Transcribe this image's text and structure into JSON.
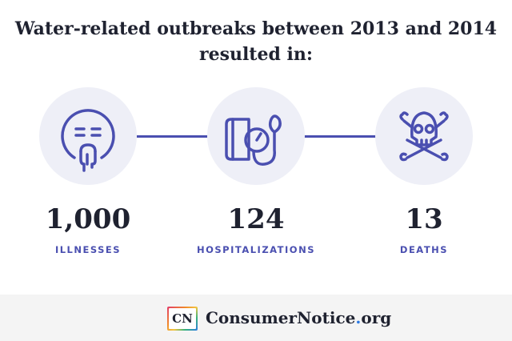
{
  "title": {
    "line1": "Water-related outbreaks between 2013 and 2014",
    "line2": "resulted in:"
  },
  "stats": [
    {
      "value": "1,000",
      "label": "ILLNESSES",
      "icon": "sick-face-icon"
    },
    {
      "value": "124",
      "label": "HOSPITALIZATIONS",
      "icon": "blood-pressure-icon"
    },
    {
      "value": "13",
      "label": "DEATHS",
      "icon": "skull-crossbones-icon"
    }
  ],
  "footer": {
    "logo_text": "CN",
    "brand_main": "ConsumerNotice",
    "brand_dot": ".",
    "brand_tld": "org"
  },
  "colors": {
    "accent": "#4a4fb0",
    "circle_bg": "#eeeff7",
    "text_dark": "#1f2230",
    "footer_bg": "#f4f4f4"
  }
}
